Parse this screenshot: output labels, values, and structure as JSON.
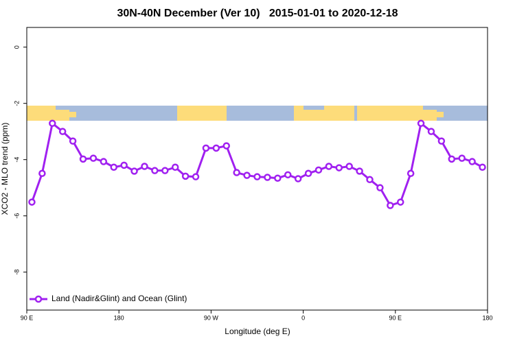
{
  "chart_data": {
    "type": "line",
    "title": "30N-40N December (Ver 10)   2015-01-01 to 2020-12-18",
    "xlabel": "Longitude (deg E)",
    "ylabel": "XCO2 - MLO trend (ppm)",
    "x": [
      95,
      105,
      115,
      125,
      135,
      145,
      155,
      165,
      175,
      185,
      195,
      205,
      215,
      225,
      235,
      245,
      255,
      265,
      275,
      285,
      295,
      305,
      315,
      325,
      335,
      345,
      355,
      365,
      375,
      385,
      395,
      405,
      415,
      425,
      435,
      445,
      455,
      465,
      475,
      485,
      495,
      505,
      515,
      525,
      535
    ],
    "series": [
      {
        "name": "Land (Nadir&Glint) and Ocean (Glint)",
        "color": "#a020f0",
        "values": [
          -5.51,
          -4.49,
          -2.71,
          -3.0,
          -3.34,
          -3.98,
          -3.95,
          -4.07,
          -4.27,
          -4.2,
          -4.41,
          -4.24,
          -4.39,
          -4.39,
          -4.27,
          -4.59,
          -4.61,
          -3.59,
          -3.59,
          -3.51,
          -4.46,
          -4.56,
          -4.61,
          -4.63,
          -4.66,
          -4.54,
          -4.68,
          -4.49,
          -4.37,
          -4.24,
          -4.29,
          -4.24,
          -4.41,
          -4.71,
          -5.0,
          -5.63,
          -5.51,
          -4.49,
          -2.71,
          -3.0,
          -3.34,
          -3.98,
          -3.95,
          -4.07,
          -4.27
        ]
      }
    ],
    "xlim": [
      90,
      540
    ],
    "xticks": [
      {
        "value": 90,
        "label": "90 E"
      },
      180,
      {
        "value": 270,
        "label": "90 W"
      },
      {
        "value": 360,
        "label": "0"
      },
      {
        "value": 450,
        "label": "90 E"
      },
      {
        "value": 540,
        "label": "180"
      }
    ],
    "ylim": [
      -9.35,
      0.7
    ],
    "yticks": [
      0,
      -2,
      -4,
      -6,
      -8
    ],
    "legend": "bottomleft"
  }
}
